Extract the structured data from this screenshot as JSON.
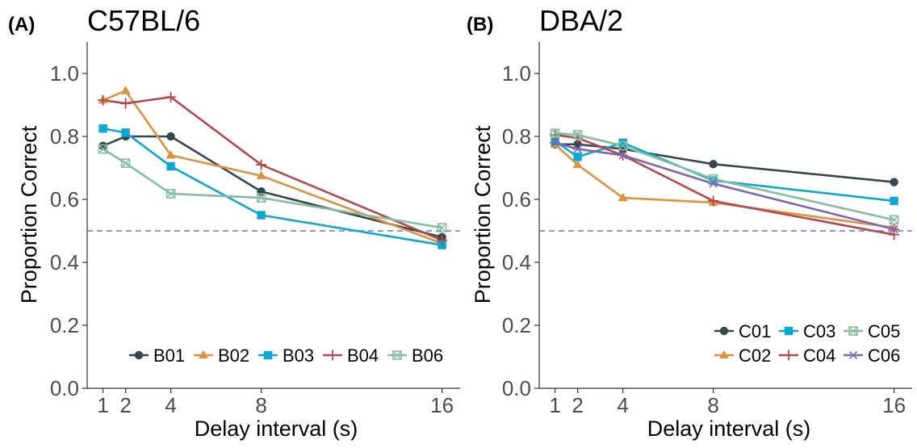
{
  "chart_data": [
    {
      "type": "line",
      "panel_label": "(A)",
      "title": "C57BL/6",
      "xlabel": "Delay interval (s)",
      "ylabel": "Proportion Correct",
      "x": [
        1,
        2,
        4,
        8,
        16
      ],
      "x_ticks": [
        "1",
        "2",
        "4",
        "8",
        "16"
      ],
      "y_ticks": [
        "0.0",
        "0.2",
        "0.4",
        "0.6",
        "0.8",
        "1.0"
      ],
      "xlim": [
        0.3,
        16.8
      ],
      "ylim": [
        0,
        1.1
      ],
      "reference_line": 0.5,
      "grid": false,
      "legend_position": "bottom-right",
      "legend_rows": [
        [
          "B01",
          "B02",
          "B03",
          "B04",
          "B06"
        ]
      ],
      "series": [
        {
          "name": "B01",
          "values": [
            0.77,
            0.8,
            0.8,
            0.625,
            0.48
          ],
          "color": "#37474f",
          "marker": "circle"
        },
        {
          "name": "B02",
          "values": [
            0.915,
            0.945,
            0.74,
            0.675,
            0.46
          ],
          "color": "#e0913f",
          "marker": "triangle"
        },
        {
          "name": "B03",
          "values": [
            0.825,
            0.812,
            0.705,
            0.55,
            0.455
          ],
          "color": "#0da7d6",
          "marker": "square"
        },
        {
          "name": "B04",
          "values": [
            0.915,
            0.905,
            0.925,
            0.71,
            0.47
          ],
          "color": "#b5484b",
          "marker": "plus"
        },
        {
          "name": "B06",
          "values": [
            0.76,
            0.715,
            0.618,
            0.605,
            0.51
          ],
          "color": "#86bda0",
          "marker": "boxcross"
        }
      ]
    },
    {
      "type": "line",
      "panel_label": "(B)",
      "title": "DBA/2",
      "xlabel": "Delay interval (s)",
      "ylabel": "Proportion Correct",
      "x": [
        1,
        2,
        4,
        8,
        16
      ],
      "x_ticks": [
        "1",
        "2",
        "4",
        "8",
        "16"
      ],
      "y_ticks": [
        "0.0",
        "0.2",
        "0.4",
        "0.6",
        "0.8",
        "1.0"
      ],
      "xlim": [
        0.3,
        16.8
      ],
      "ylim": [
        0,
        1.1
      ],
      "reference_line": 0.5,
      "grid": false,
      "legend_position": "bottom-right",
      "legend_rows": [
        [
          "C01",
          "C03",
          "C05"
        ],
        [
          "C02",
          "C04",
          "C06"
        ]
      ],
      "series": [
        {
          "name": "C01",
          "values": [
            0.775,
            0.775,
            0.76,
            0.712,
            0.655
          ],
          "color": "#37474f",
          "marker": "circle"
        },
        {
          "name": "C02",
          "values": [
            0.775,
            0.71,
            0.605,
            0.59,
            0.51
          ],
          "color": "#e0913f",
          "marker": "triangle"
        },
        {
          "name": "C03",
          "values": [
            0.785,
            0.735,
            0.78,
            0.66,
            0.595
          ],
          "color": "#0da7d6",
          "marker": "square"
        },
        {
          "name": "C04",
          "values": [
            0.805,
            0.795,
            0.74,
            0.595,
            0.488
          ],
          "color": "#b5484b",
          "marker": "plus"
        },
        {
          "name": "C05",
          "values": [
            0.81,
            0.805,
            0.77,
            0.665,
            0.535
          ],
          "color": "#86bda0",
          "marker": "boxcross"
        },
        {
          "name": "C06",
          "values": [
            0.78,
            0.76,
            0.74,
            0.65,
            0.505
          ],
          "color": "#7b68b5",
          "marker": "asterisk"
        }
      ]
    }
  ]
}
